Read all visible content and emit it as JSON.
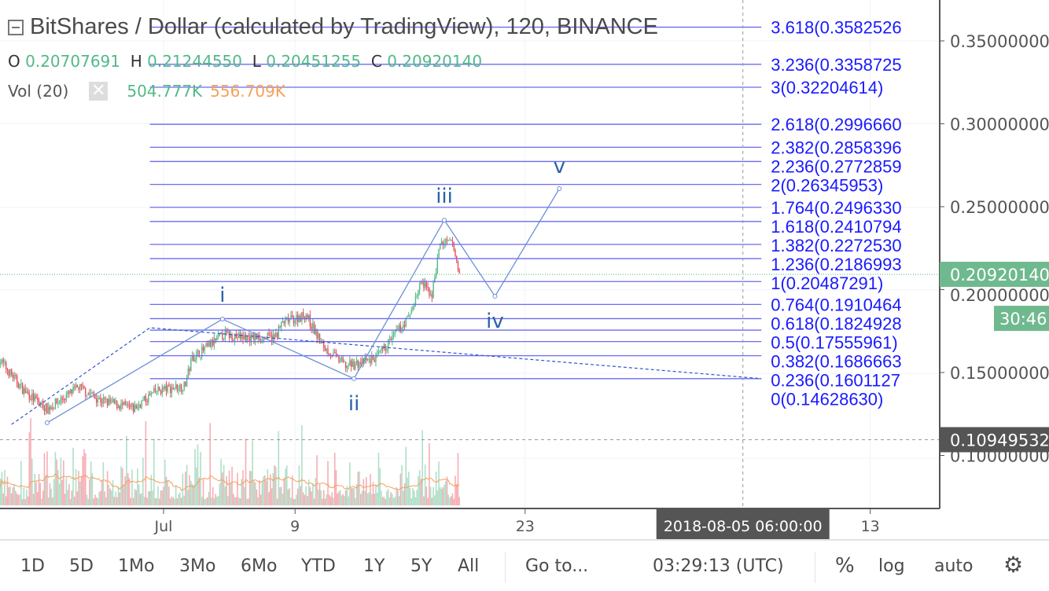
{
  "header": {
    "title": "BitShares / Dollar (calculated by TradingView), 120, BINANCE",
    "ohlc": {
      "o_label": "O",
      "o": "0.20707691",
      "h_label": "H",
      "h": "0.21244550",
      "l_label": "L",
      "l": "0.20451255",
      "c_label": "C",
      "c": "0.20920140"
    },
    "volume": {
      "label": "Vol (20)",
      "value": "504.777K",
      "ma": "556.709K"
    }
  },
  "toolbar": {
    "ranges": [
      "1D",
      "5D",
      "1Mo",
      "3Mo",
      "6Mo",
      "YTD",
      "1Y",
      "5Y",
      "All"
    ],
    "goto": "Go to...",
    "clock": "03:29:13 (UTC)",
    "percent": "%",
    "log": "log",
    "auto": "auto",
    "settings_icon": "gear-icon"
  },
  "colors": {
    "up": "#53b987",
    "down": "#eb4d5c",
    "fib": "#1a1aff",
    "fib_line": "#6b6bf0",
    "wave": "#6b8fd8",
    "wave_label": "#2962a8",
    "vol_ma": "#f5a05a",
    "last_price_tag": "#6fb98f",
    "crosshair_tag": "#555555"
  },
  "chart_data": {
    "type": "candlestick",
    "symbol": "BitShares / Dollar",
    "interval": "120",
    "y_axis": {
      "range": [
        0.07,
        0.37
      ],
      "ticks": [
        "0.35000000",
        "0.30000000",
        "0.25000000",
        "0.20000000",
        "0.15000000",
        "0.10000000"
      ]
    },
    "x_axis": {
      "range": [
        "2018-06-21 00:00",
        "2018-08-17 00:00"
      ],
      "ticks": [
        {
          "label": "Jul",
          "t": "2018-07-01 00:00"
        },
        {
          "label": "9",
          "t": "2018-07-09 00:00"
        },
        {
          "label": "23",
          "t": "2018-07-23 00:00"
        },
        {
          "label": "13",
          "t": "2018-08-13 00:00"
        }
      ]
    },
    "last_price": {
      "value": "0.20920140",
      "countdown": "30:46"
    },
    "crosshair": {
      "time_label": "2018-08-05 06:00:00",
      "t": "2018-08-05 06:00",
      "price_label": "0.10949532",
      "price": 0.10949532
    },
    "price_path": [
      {
        "t": "2018-06-21 00:00",
        "close": 0.158
      },
      {
        "t": "2018-06-22 12:00",
        "close": 0.139
      },
      {
        "t": "2018-06-23 22:00",
        "close": 0.128
      },
      {
        "t": "2018-06-25 20:00",
        "close": 0.141
      },
      {
        "t": "2018-06-27 06:00",
        "close": 0.133
      },
      {
        "t": "2018-06-29 04:00",
        "close": 0.128
      },
      {
        "t": "2018-06-30 14:00",
        "close": 0.139
      },
      {
        "t": "2018-07-02 07:00",
        "close": 0.142
      },
      {
        "t": "2018-07-02 18:00",
        "close": 0.159
      },
      {
        "t": "2018-07-03 12:00",
        "close": 0.164
      },
      {
        "t": "2018-07-04 16:00",
        "close": 0.173
      },
      {
        "t": "2018-07-05 20:00",
        "close": 0.171
      },
      {
        "t": "2018-07-07 18:00",
        "close": 0.171
      },
      {
        "t": "2018-07-08 06:00",
        "close": 0.18
      },
      {
        "t": "2018-07-09 16:00",
        "close": 0.185
      },
      {
        "t": "2018-07-10 16:00",
        "close": 0.166
      },
      {
        "t": "2018-07-12 02:00",
        "close": 0.154
      },
      {
        "t": "2018-07-13 02:00",
        "close": 0.156
      },
      {
        "t": "2018-07-14 00:00",
        "close": 0.159
      },
      {
        "t": "2018-07-14 22:00",
        "close": 0.171
      },
      {
        "t": "2018-07-15 22:00",
        "close": 0.183
      },
      {
        "t": "2018-07-16 16:00",
        "close": 0.204
      },
      {
        "t": "2018-07-17 08:00",
        "close": 0.197
      },
      {
        "t": "2018-07-17 20:00",
        "close": 0.228
      },
      {
        "t": "2018-07-18 14:00",
        "close": 0.228
      },
      {
        "t": "2018-07-19 00:00",
        "close": 0.209
      }
    ],
    "fib_extension": {
      "t_start": "2018-06-30 04:00",
      "t_end": "2018-08-06 09:00",
      "levels": [
        {
          "label": "3.618(0.3582526",
          "price": 0.3582526
        },
        {
          "label": "3.236(0.3358725",
          "price": 0.3358725
        },
        {
          "label": "3(0.32204614)",
          "price": 0.32204614
        },
        {
          "label": "2.618(0.2996660",
          "price": 0.299666
        },
        {
          "label": "2.382(0.2858396",
          "price": 0.2858396
        },
        {
          "label": "2.236(0.2772859",
          "price": 0.2772859
        },
        {
          "label": "2(0.26345953)",
          "price": 0.26345953
        },
        {
          "label": "1.764(0.2496330",
          "price": 0.249633
        },
        {
          "label": "1.618(0.2410794",
          "price": 0.2410794
        },
        {
          "label": "1.382(0.2272530",
          "price": 0.227253
        },
        {
          "label": "1.236(0.2186993",
          "price": 0.2186993
        },
        {
          "label": "1(0.20487291)",
          "price": 0.20487291
        },
        {
          "label": "0.764(0.1910464",
          "price": 0.1910464
        },
        {
          "label": "0.618(0.1824928",
          "price": 0.1824928
        },
        {
          "label": "0.5(0.17555961)",
          "price": 0.17555961
        },
        {
          "label": "0.382(0.1686663",
          "price": 0.1686663
        },
        {
          "label": "0.236(0.1601127",
          "price": 0.1601127
        },
        {
          "label": "0(0.14628630)",
          "price": 0.1462863
        }
      ]
    },
    "elliott_wave": [
      {
        "label": "",
        "t": "2018-06-23 22:00",
        "price": 0.1197
      },
      {
        "label": "i",
        "t": "2018-07-04 14:00",
        "price": 0.1822
      },
      {
        "label": "ii",
        "t": "2018-07-12 14:00",
        "price": 0.1463
      },
      {
        "label": "iii",
        "t": "2018-07-18 02:00",
        "price": 0.2419
      },
      {
        "label": "iv",
        "t": "2018-07-21 04:00",
        "price": 0.196
      },
      {
        "label": "v",
        "t": "2018-07-25 02:00",
        "price": 0.2609
      }
    ],
    "channel": [
      {
        "t": "2018-06-21 18:00",
        "price": 0.1187
      },
      {
        "t": "2018-06-30 04:00",
        "price": 0.177
      },
      {
        "t": "2018-08-06 09:00",
        "price": 0.1463
      }
    ]
  }
}
